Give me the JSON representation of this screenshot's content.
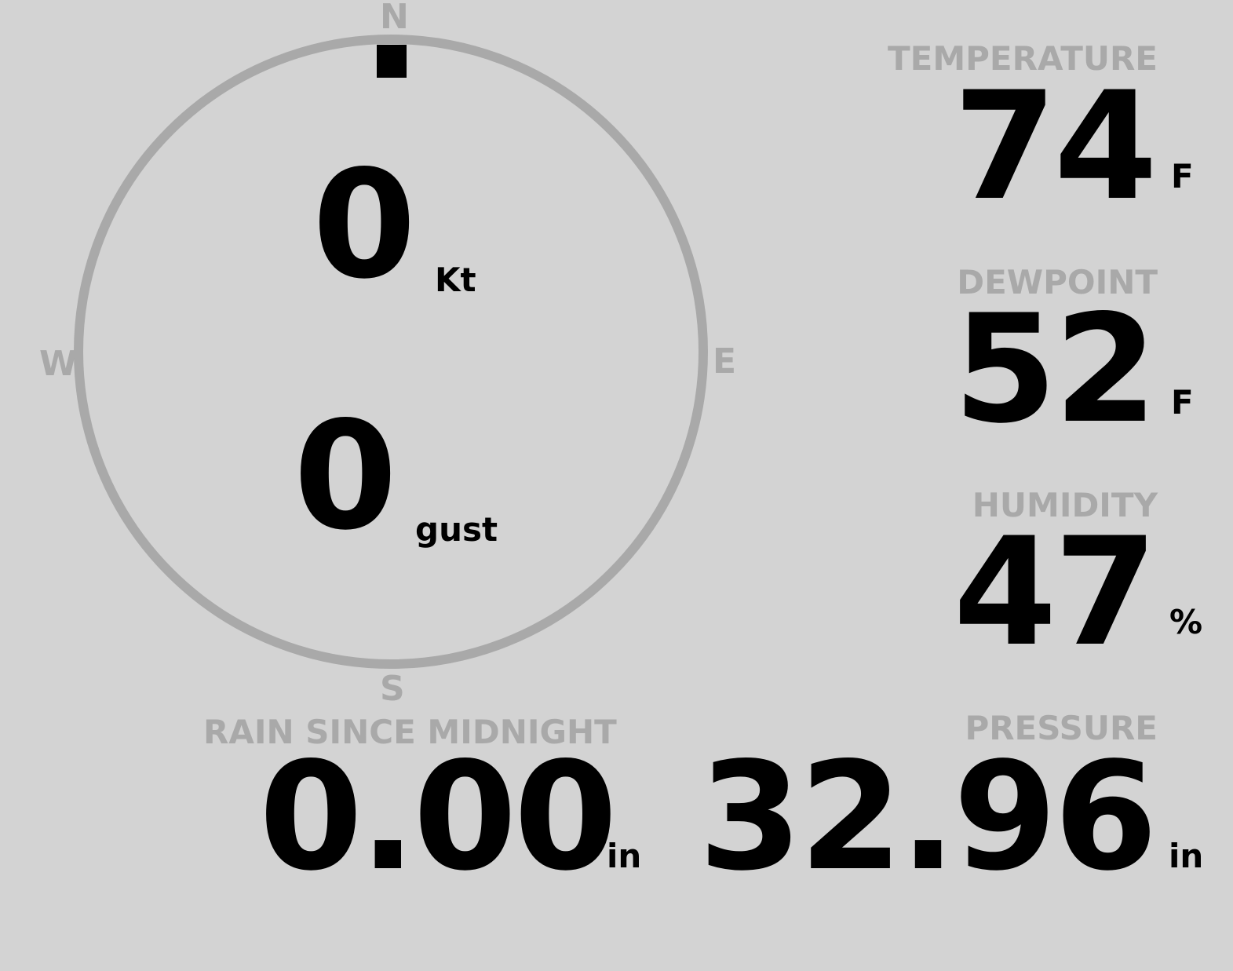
{
  "compass": {
    "north": "N",
    "south": "S",
    "east": "E",
    "west": "W",
    "direction_degrees": 0,
    "ring_color": "#a9a9a9",
    "indicator_color": "#000000"
  },
  "wind": {
    "speed": "0",
    "speed_unit": "Kt",
    "gust": "0",
    "gust_unit": "gust"
  },
  "temperature": {
    "label": "TEMPERATURE",
    "value": "74",
    "unit": "F"
  },
  "dewpoint": {
    "label": "DEWPOINT",
    "value": "52",
    "unit": "F"
  },
  "humidity": {
    "label": "HUMIDITY",
    "value": "47",
    "unit": "%"
  },
  "rain": {
    "label": "RAIN SINCE MIDNIGHT",
    "value": "0.00",
    "unit": "in"
  },
  "pressure": {
    "label": "PRESSURE",
    "value": "32.96",
    "unit": "in"
  }
}
